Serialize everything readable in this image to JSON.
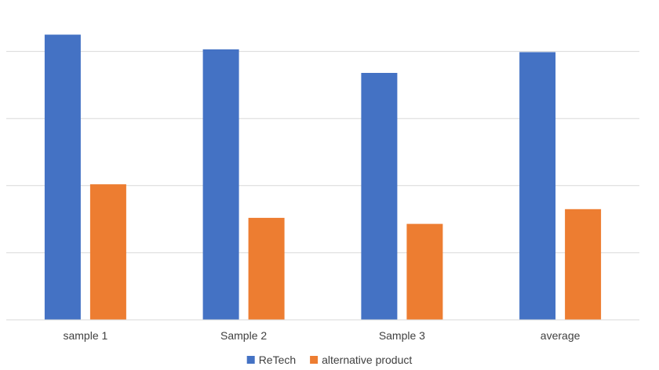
{
  "chart_data": {
    "type": "bar",
    "title": "",
    "xlabel": "",
    "ylabel": "",
    "categories": [
      "sample 1",
      "Sample 2",
      "Sample 3",
      "average"
    ],
    "series": [
      {
        "name": "ReTech",
        "color": "#4472C4",
        "values": [
          4.25,
          4.03,
          3.68,
          3.99
        ]
      },
      {
        "name": "alternative product",
        "color": "#ED7D31",
        "values": [
          2.02,
          1.52,
          1.43,
          1.65
        ]
      }
    ],
    "ylim": [
      0,
      5
    ],
    "yticks": [
      0,
      1,
      2,
      3,
      4,
      5
    ],
    "show_ytick_labels": false,
    "grid": true,
    "legend_position": "bottom"
  }
}
